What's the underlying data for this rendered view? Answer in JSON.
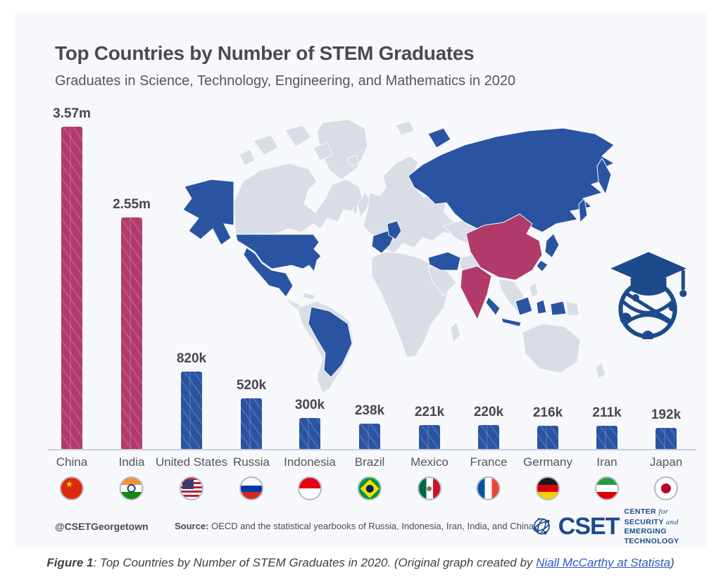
{
  "infographic": {
    "footer": {
      "handle": "@CSETGeorgetown",
      "source_label": "Source:",
      "source_text": "OECD and the statistical yearbooks of Russia, Indonesia, Iran, India, and China"
    },
    "logo": {
      "acronym": "CSET",
      "line1_a": "CENTER ",
      "line1_b": "for",
      "line1_c": " SECURITY ",
      "line1_d": "and",
      "line2": "EMERGING TECHNOLOGY"
    }
  },
  "caption": {
    "figure_label": "Figure 1",
    "before_link": ": Top Countries by Number of STEM Graduates in 2020. (Original graph created by ",
    "link_text": "Niall McCarthy at Statista",
    "after_link": ")"
  },
  "map": {
    "highlighted_pink": [
      "China",
      "India"
    ],
    "highlighted_blue": [
      "United States",
      "Russia",
      "Indonesia",
      "Brazil",
      "Mexico",
      "France",
      "Germany",
      "Iran",
      "Japan"
    ],
    "other_land_color_name": "light-gray"
  },
  "colors": {
    "card_background": "#f7f8fb",
    "bar_blue": "#2a53a2",
    "bar_pink": "#b23a6b",
    "map_gray": "#d9dde6",
    "text_dark": "#4a4b50",
    "axis": "#c9cedb",
    "logo_blue": "#1d4a8c",
    "link_blue": "#2b5bc7"
  },
  "chart_data": {
    "type": "bar",
    "title": "Top Countries by Number of STEM Graduates",
    "subtitle": "Graduates in Science, Technology, Engineering, and Mathematics in 2020",
    "categories": [
      "China",
      "India",
      "United States",
      "Russia",
      "Indonesia",
      "Brazil",
      "Mexico",
      "France",
      "Germany",
      "Iran",
      "Japan"
    ],
    "values": [
      3570000,
      2550000,
      820000,
      520000,
      300000,
      238000,
      221000,
      220000,
      216000,
      211000,
      192000
    ],
    "value_labels": [
      "3.57m",
      "2.55m",
      "820k",
      "520k",
      "300k",
      "238k",
      "221k",
      "220k",
      "216k",
      "211k",
      "192k"
    ],
    "highlighted": [
      "China",
      "India"
    ],
    "bar_color": "#2a53a2",
    "highlight_color": "#b23a6b",
    "xlabel": "",
    "ylabel": "",
    "grid": false,
    "legend": false,
    "year": "2020"
  }
}
